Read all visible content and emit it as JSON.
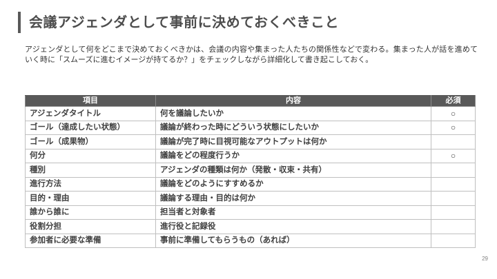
{
  "slide": {
    "title": "会議アジェンダとして事前に決めておくべきこと",
    "description": "アジェンダとして何をどこまで決めておくべきかは、会議の内容や集まった人たちの関係性などで変わる。集まった人が話を進めていく時に「スムーズに進むイメージが持てるか？」をチェックしながら詳細化して書き起こしておく。",
    "page_number": "29"
  },
  "table": {
    "headers": [
      "項目",
      "内容",
      "必須"
    ],
    "rows": [
      {
        "item": "アジェンダタイトル",
        "content": "何を議論したいか",
        "required": "○"
      },
      {
        "item": "ゴール（達成したい状態）",
        "content": "議論が終わった時にどういう状態にしたいか",
        "required": "○"
      },
      {
        "item": "ゴール（成果物）",
        "content": "議論が完了時に目視可能なアウトプットは何か",
        "required": ""
      },
      {
        "item": "何分",
        "content": "議論をどの程度行うか",
        "required": "○"
      },
      {
        "item": "種別",
        "content": "アジェンダの種類は何か（発散・収束・共有）",
        "required": ""
      },
      {
        "item": "進行方法",
        "content": "議論をどのようにすすめるか",
        "required": ""
      },
      {
        "item": "目的・理由",
        "content": "議論する理由・目的は何か",
        "required": ""
      },
      {
        "item": "誰から誰に",
        "content": "担当者と対象者",
        "required": ""
      },
      {
        "item": "役割分担",
        "content": "進行役と記録役",
        "required": ""
      },
      {
        "item": "参加者に必要な準備",
        "content": "事前に準備してもらうもの（あれば）",
        "required": ""
      }
    ]
  },
  "colors": {
    "header_bg": "#595959",
    "header_text": "#ffffff",
    "cell_text": "#404040",
    "border": "#bfbfbf",
    "accent_bar": "#595959",
    "title_text": "#4d4d4d",
    "page_number": "#7f7f7f"
  }
}
